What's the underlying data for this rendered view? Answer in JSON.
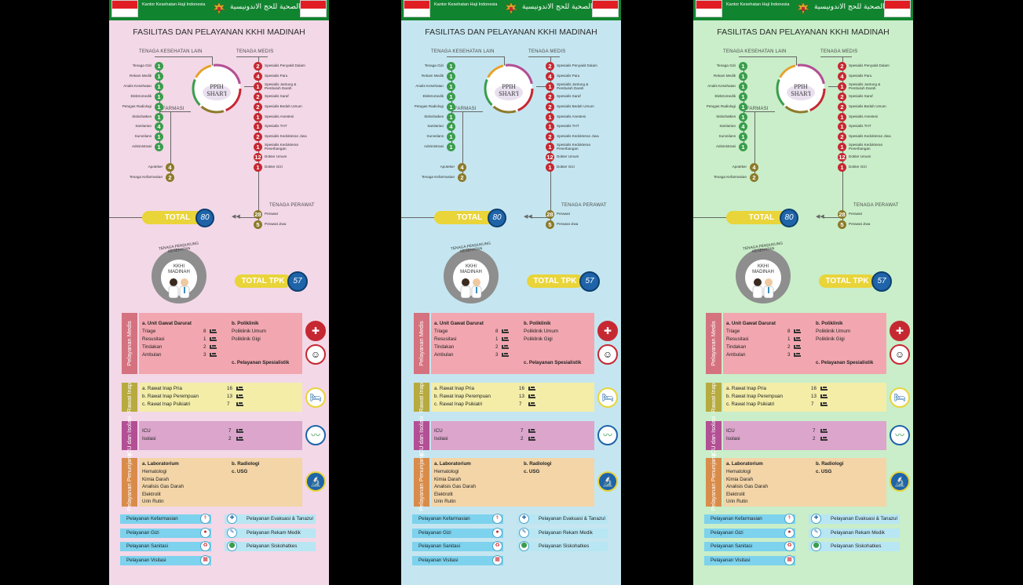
{
  "header": {
    "org_name": "Kantor Kesehatan Haji Indonesia",
    "script_text": "ﺍﻟﻜﺘﺐ ﺍﻟﺼﺤﻴﺔ ﻟﻠﺤﺞ ﺍﻻﻧﺪﻭﻧﻴﺴﻴﺔ"
  },
  "title": "FASILITAS DAN PELAYANAN KKHI MADINAH",
  "center": {
    "line1": "PPIH",
    "line2": "SHAR'I"
  },
  "categories": {
    "lain": "TENAGA KESEHATAN LAIN",
    "medis": "TENAGA MEDIS",
    "farmasi": "FARMASI",
    "perawat": "TENAGA PERAWAT"
  },
  "left_staff": [
    {
      "label": "Tenaga Gizi",
      "count": "1"
    },
    {
      "label": "Rekam Medik",
      "count": "1"
    },
    {
      "label": "Analis Kesehatan",
      "count": "1"
    },
    {
      "label": "Elektromedik",
      "count": "1"
    },
    {
      "label": "Petugas Radiologi",
      "count": "1"
    },
    {
      "label": "Siskohatkes",
      "count": "1"
    },
    {
      "label": "Sanitarian",
      "count": "4"
    },
    {
      "label": "Surveilans",
      "count": "1"
    },
    {
      "label": "Administrasi",
      "count": "1"
    }
  ],
  "farmasi_staff": [
    {
      "label": "Apoteker",
      "count": "4"
    },
    {
      "label": "Tenaga Kefarmasian",
      "count": "2"
    }
  ],
  "medis_staff": [
    {
      "label": "Spesialis Penyakit Dalam",
      "count": "2"
    },
    {
      "label": "Spesialis Paru",
      "count": "4"
    },
    {
      "label": "Spesialis Jantung & Pembuluh Darah",
      "count": "1"
    },
    {
      "label": "Spesialis Saraf",
      "count": "2"
    },
    {
      "label": "Spesialis Bedah Umum",
      "count": "2"
    },
    {
      "label": "Spesialis Anestesi",
      "count": "1"
    },
    {
      "label": "Spesialis THT",
      "count": "1"
    },
    {
      "label": "Spesialis Kedokteran Jiwa",
      "count": "2"
    },
    {
      "label": "Spesialis Kedokteran Penerbangan",
      "count": "1"
    },
    {
      "label": "Dokter Umum",
      "count": "12"
    },
    {
      "label": "Dokter Gizi",
      "count": "1"
    }
  ],
  "perawat_staff": [
    {
      "label": "Perawat",
      "count": "28"
    },
    {
      "label": "Perawat Jiwa",
      "count": "5"
    }
  ],
  "total": {
    "label": "TOTAL",
    "value": "80"
  },
  "kkhi": {
    "arc": "TENAGA PENDUKUNG KESEHATAN",
    "line1": "KKHI",
    "line2": "MADINAH"
  },
  "tpk": {
    "label": "TOTAL TPK",
    "value": "57"
  },
  "medis": {
    "title": "Pelayanan Medis",
    "a_title": "a. Unit Gawat Darurat",
    "a_items": [
      {
        "label": "Triage",
        "count": "8"
      },
      {
        "label": "Resusitasi",
        "count": "1"
      },
      {
        "label": "Tindakan",
        "count": "2"
      },
      {
        "label": "Ambulan",
        "count": "3"
      }
    ],
    "b_title": "b. Poliklinik",
    "b_items": [
      "Poliklinik Umum",
      "Poliklinik Gigi"
    ],
    "c_title": "c. Pelayanan Spesialistik"
  },
  "rawat": {
    "title": "Rawat Inap",
    "items": [
      {
        "label": "a. Rawat Inap Pria",
        "count": "16"
      },
      {
        "label": "b. Rawat Inap Perempuan",
        "count": "13"
      },
      {
        "label": "c. Rawat Inap Psikiatri",
        "count": "7"
      }
    ]
  },
  "icu": {
    "title": "ICU dan Isolasi",
    "items": [
      {
        "label": "ICU",
        "count": "7"
      },
      {
        "label": "Isolasi",
        "count": "2"
      }
    ]
  },
  "penunjang": {
    "title": "Pelayanan Penunjang",
    "a_title": "a. Laboratorium",
    "a_items": [
      "Hematologi",
      "Kimia Darah",
      "Analisis Gas Darah",
      "Elektrolit",
      "Urin Rutin"
    ],
    "b_title": "b. Radiologi",
    "c_title": "c. USG"
  },
  "services_left": [
    "Pelayanan Kefarmasian",
    "Pelayanan Gizi",
    "Pelayanan Sanitasi",
    "Pelayanan Visitasi"
  ],
  "services_right": [
    "Pelayanan Evakuasi & Tanazul",
    "Pelayanan Rekam Medik",
    "Pelayanan Siskohatkes"
  ],
  "colors": {
    "panel_backgrounds": [
      "#f3d8e7",
      "#c5e6f0",
      "#c9eec9"
    ],
    "header": "#11842f",
    "medis": "#f2a7b0",
    "medis_label": "#d5727f",
    "rawat": "#f3eda8",
    "rawat_label": "#b7aa3f",
    "icu": "#dba5cc",
    "icu_label": "#b34f95",
    "penunjang": "#f3d5a8",
    "penunjang_label": "#d98c4a",
    "accent_yellow": "#e9d43a",
    "accent_blue": "#1f64a9"
  }
}
